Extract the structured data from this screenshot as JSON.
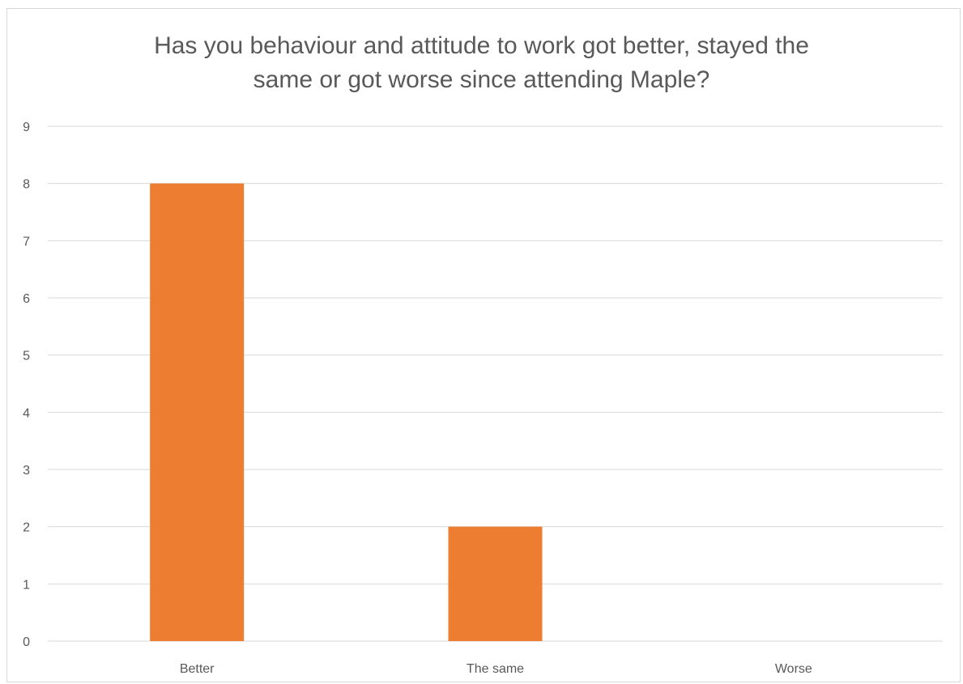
{
  "chart_data": {
    "type": "bar",
    "title_lines": [
      "Has you behaviour and attitude to work got better, stayed the",
      "same or got worse since attending Maple?"
    ],
    "categories": [
      "Better",
      "The same",
      "Worse"
    ],
    "values": [
      8,
      2,
      0
    ],
    "ylim": [
      0,
      9
    ],
    "yticks": [
      0,
      1,
      2,
      3,
      4,
      5,
      6,
      7,
      8,
      9
    ],
    "xlabel": "",
    "ylabel": "",
    "grid": true,
    "bar_color": "#ed7d31",
    "grid_color": "#d9d9d9",
    "text_color": "#595959"
  }
}
